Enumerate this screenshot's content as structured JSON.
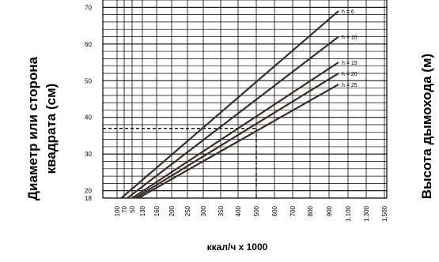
{
  "chart_data": {
    "type": "line",
    "title": "",
    "ylabel_left": "Диаметр или сторона квадрата (см)",
    "ylabel_right": "Высота дымохода (м)",
    "xlabel": "ккал/ч x 1000",
    "x_tick_labels": [
      "100",
      "70",
      "50",
      "130",
      "160",
      "200",
      "250",
      "300",
      "350",
      "400",
      "500",
      "600",
      "700",
      "800",
      "900",
      "1.100",
      "1.300",
      "1.500"
    ],
    "y_tick_labels": [
      "18",
      "20",
      "30",
      "40",
      "50",
      "60",
      "70"
    ],
    "y_ticks": [
      18,
      20,
      30,
      40,
      50,
      60,
      70
    ],
    "ylim": [
      18,
      72
    ],
    "grid": true,
    "series": [
      {
        "name": "h = 6",
        "x_index": [
          0.6,
          14.5
        ],
        "y": [
          18,
          69
        ]
      },
      {
        "name": "h = 10",
        "x_index": [
          1.4,
          14.5
        ],
        "y": [
          18,
          62
        ]
      },
      {
        "name": "h = 15",
        "x_index": [
          2.0,
          14.5
        ],
        "y": [
          18,
          55
        ]
      },
      {
        "name": "h = 20",
        "x_index": [
          2.3,
          14.5
        ],
        "y": [
          18,
          52
        ]
      },
      {
        "name": "h = 25",
        "x_index": [
          2.6,
          14.5
        ],
        "y": [
          18,
          49
        ]
      }
    ],
    "reference_line": {
      "x_label": "500",
      "y": 37
    }
  }
}
